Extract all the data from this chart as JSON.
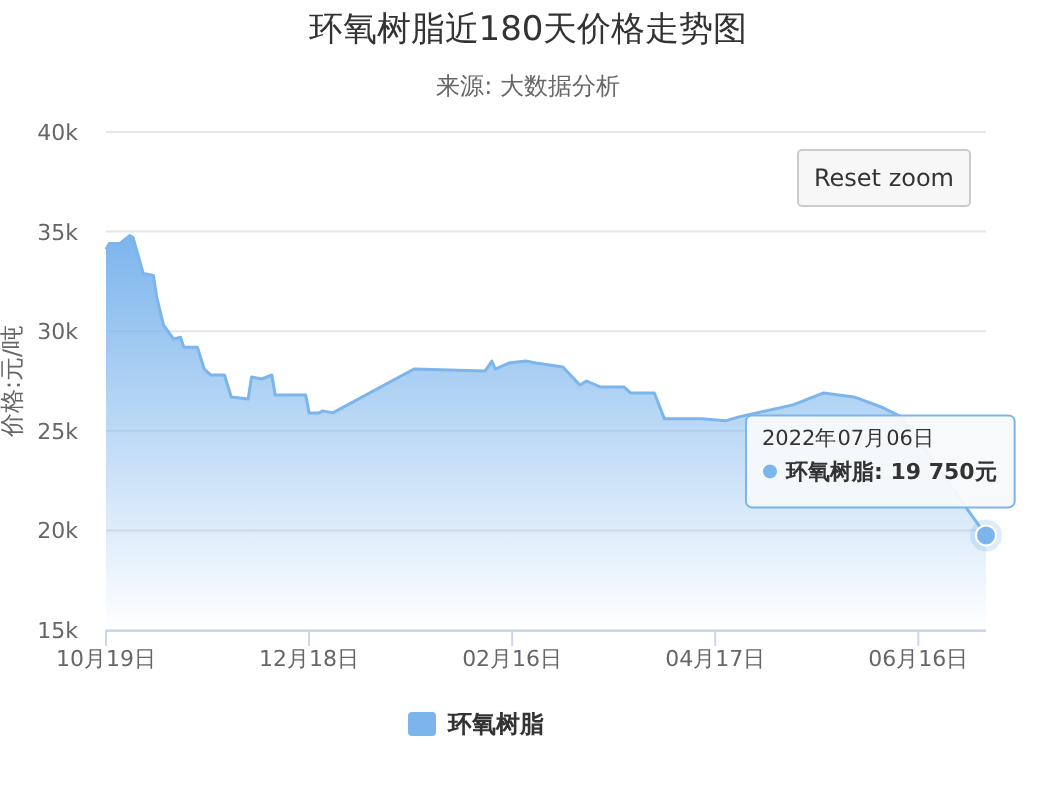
{
  "chart_data": {
    "type": "area",
    "title": "环氧树脂近180天价格走势图",
    "subtitle": "来源: 大数据分析",
    "ylabel": "价格:元/吨",
    "x": [
      "2021-10-19",
      "2021-10-20",
      "2021-10-23",
      "2021-10-26",
      "2021-10-27",
      "2021-10-30",
      "2021-11-02",
      "2021-11-03",
      "2021-11-05",
      "2021-11-08",
      "2021-11-10",
      "2021-11-11",
      "2021-11-15",
      "2021-11-17",
      "2021-11-19",
      "2021-11-23",
      "2021-11-25",
      "2021-11-30",
      "2021-12-01",
      "2021-12-04",
      "2021-12-07",
      "2021-12-08",
      "2021-12-17",
      "2021-12-18",
      "2021-12-21",
      "2021-12-22",
      "2021-12-25",
      "2022-01-18",
      "2022-02-08",
      "2022-02-10",
      "2022-02-11",
      "2022-02-15",
      "2022-02-20",
      "2022-02-23",
      "2022-03-03",
      "2022-03-08",
      "2022-03-10",
      "2022-03-14",
      "2022-03-21",
      "2022-03-23",
      "2022-03-30",
      "2022-04-02",
      "2022-04-13",
      "2022-04-20",
      "2022-04-24",
      "2022-05-10",
      "2022-05-19",
      "2022-05-28",
      "2022-06-05",
      "2022-06-11",
      "2022-07-06"
    ],
    "series": [
      {
        "name": "环氧树脂",
        "color": "#7cb5ec",
        "values": [
          34100,
          34400,
          34400,
          34800,
          34700,
          32900,
          32800,
          31700,
          30300,
          29600,
          29700,
          29200,
          29200,
          28100,
          27800,
          27800,
          26700,
          26600,
          27700,
          27600,
          27800,
          26800,
          26800,
          25900,
          25900,
          26000,
          25900,
          28100,
          28000,
          28500,
          28100,
          28400,
          28500,
          28400,
          28200,
          27300,
          27500,
          27200,
          27200,
          26900,
          26900,
          25600,
          25600,
          25500,
          25700,
          26300,
          26900,
          26700,
          26200,
          25700,
          19750
        ]
      }
    ],
    "xlim": [
      "2021-10-19",
      "2022-07-06"
    ],
    "xticks": [
      {
        "value": "2021-10-19",
        "label": "10月19日"
      },
      {
        "value": "2021-12-18",
        "label": "12月18日"
      },
      {
        "value": "2022-02-16",
        "label": "02月16日"
      },
      {
        "value": "2022-04-17",
        "label": "04月17日"
      },
      {
        "value": "2022-06-16",
        "label": "06月16日"
      }
    ],
    "ylim": [
      15000,
      40000
    ],
    "yticks": [
      {
        "value": 15000,
        "label": "15k"
      },
      {
        "value": 20000,
        "label": "20k"
      },
      {
        "value": 25000,
        "label": "25k"
      },
      {
        "value": 30000,
        "label": "30k"
      },
      {
        "value": 35000,
        "label": "35k"
      },
      {
        "value": 40000,
        "label": "40k"
      }
    ],
    "grid": "y",
    "legend": "bottom",
    "marker": "none",
    "annotations": [
      "Reset zoom",
      "2022年07月06日",
      {
        "text": "环氧树脂: 19 750元",
        "x": "2022-07-06",
        "y": 19750
      }
    ]
  }
}
